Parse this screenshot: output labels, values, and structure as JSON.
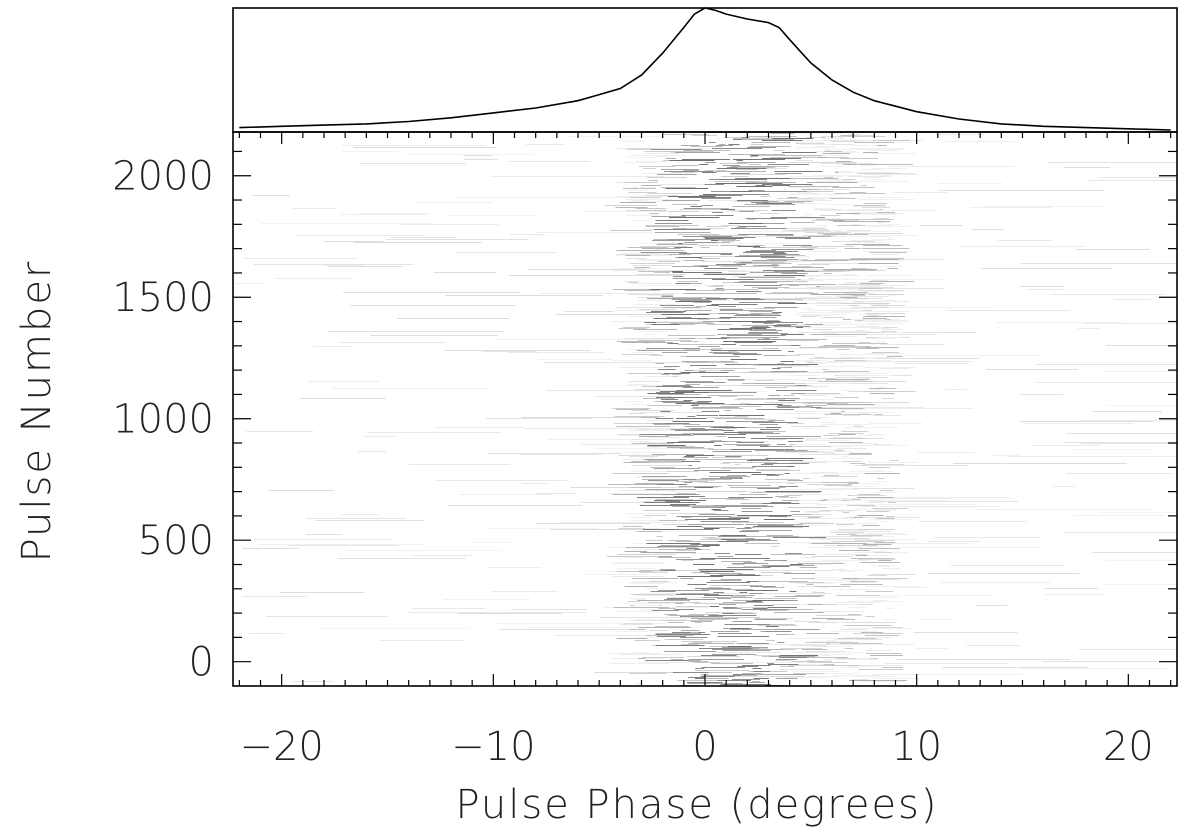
{
  "chart_data": [
    {
      "type": "line",
      "panel": "top",
      "x": [
        -22,
        -20,
        -18,
        -16,
        -14,
        -12,
        -10,
        -8,
        -6,
        -5,
        -4,
        -3,
        -2,
        -1,
        -0.5,
        0,
        0.5,
        1,
        2,
        3,
        3.5,
        4,
        5,
        6,
        7,
        8,
        10,
        12,
        14,
        16,
        18,
        20,
        22
      ],
      "y": [
        0.02,
        0.03,
        0.04,
        0.05,
        0.07,
        0.1,
        0.14,
        0.18,
        0.24,
        0.29,
        0.34,
        0.45,
        0.63,
        0.84,
        0.95,
        1.0,
        0.98,
        0.95,
        0.91,
        0.88,
        0.84,
        0.74,
        0.55,
        0.41,
        0.31,
        0.24,
        0.15,
        0.09,
        0.05,
        0.03,
        0.02,
        0.01,
        0.0
      ],
      "xlim": [
        -22.3,
        22.3
      ],
      "ylim": [
        0,
        1
      ],
      "ytick_labels": false
    },
    {
      "type": "heatmap",
      "panel": "bottom",
      "xlabel": "Pulse Phase (degrees)",
      "ylabel": "Pulse Number",
      "xlim": [
        -22.3,
        22.3
      ],
      "ylim": [
        -100,
        2180
      ],
      "xticks": [
        -20,
        -10,
        0,
        10,
        20
      ],
      "xtick_labels": [
        "−20",
        "−10",
        "0",
        "10",
        "20"
      ],
      "yticks": [
        0,
        500,
        1000,
        1500,
        2000
      ],
      "ytick_labels": [
        "0",
        "500",
        "1000",
        "1500",
        "2000"
      ],
      "pulses": 2180,
      "emission_window": [
        -3.5,
        9
      ],
      "colormap": "greyscale (darker = brighter emission)"
    }
  ]
}
